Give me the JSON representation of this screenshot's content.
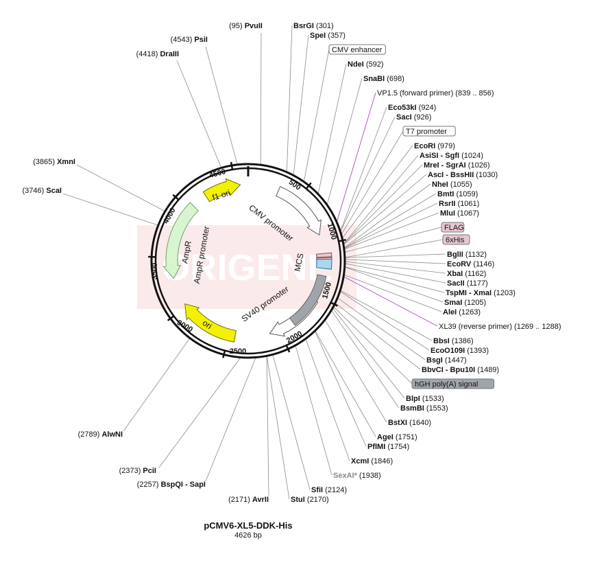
{
  "plasmid": {
    "name": "pCMV6-XL5-DDK-His",
    "size_label": "4626 bp"
  },
  "watermark": "ORIGENE",
  "colors": {
    "primer": "#a233b8",
    "ori": "#f2f200",
    "ampr": "#d8f5d0",
    "mcs": "#a9d6f0",
    "hgh": "#a0a4ab",
    "flag": "#e7c6d2",
    "backbone": "#111111",
    "leader": "#8a8a8a"
  },
  "ruler_ticks": [
    "500",
    "1000",
    "1500",
    "2000",
    "2500",
    "3000",
    "3500",
    "4000",
    "4500"
  ],
  "arc_features": [
    {
      "label": "CMV promoter"
    },
    {
      "label": "MCS"
    },
    {
      "label": "SV40 promoter"
    },
    {
      "label": "ori"
    },
    {
      "label": "AmpR"
    },
    {
      "label": "AmpR promoter"
    },
    {
      "label": "f1 ori"
    }
  ],
  "annotations_left": [
    {
      "site": "PvuII",
      "pos": "(95)"
    },
    {
      "site": "PsiI",
      "pos": "(4543)"
    },
    {
      "site": "DraIII",
      "pos": "(4418)"
    },
    {
      "site": "XmnI",
      "pos": "(3865)"
    },
    {
      "site": "ScaI",
      "pos": "(3746)"
    },
    {
      "site": "AlwNI",
      "pos": "(2789)"
    },
    {
      "site": "PciI",
      "pos": "(2373)"
    },
    {
      "site": "BspQI - SapI",
      "pos": "(2257)"
    },
    {
      "site": "AvrII",
      "pos": "(2171)"
    }
  ],
  "annotations_right": [
    {
      "site": "BsrGI",
      "pos": "(301)"
    },
    {
      "site": "SpeI",
      "pos": "(357)"
    },
    {
      "feature": "CMV enhancer"
    },
    {
      "site": "NdeI",
      "pos": "(592)"
    },
    {
      "site": "SnaBI",
      "pos": "(698)"
    },
    {
      "primer": "VP1.5 (forward primer)",
      "range": "(839 .. 856)"
    },
    {
      "site": "Eco53kI",
      "pos": "(924)"
    },
    {
      "site": "SacI",
      "pos": "(926)"
    },
    {
      "feature": "T7 promoter"
    },
    {
      "site": "EcoRI",
      "pos": "(979)"
    },
    {
      "site": "AsiSI - SgfI",
      "pos": "(1024)"
    },
    {
      "site": "MreI - SgrAI",
      "pos": "(1026)"
    },
    {
      "site": "AscI - BssHII",
      "pos": "(1030)"
    },
    {
      "site": "NheI",
      "pos": "(1055)"
    },
    {
      "site": "BmtI",
      "pos": "(1059)"
    },
    {
      "site": "RsrII",
      "pos": "(1061)"
    },
    {
      "site": "MluI",
      "pos": "(1067)"
    },
    {
      "tag": "FLAG"
    },
    {
      "tag": "6xHis"
    },
    {
      "site": "BglII",
      "pos": "(1132)"
    },
    {
      "site": "EcoRV",
      "pos": "(1146)"
    },
    {
      "site": "XbaI",
      "pos": "(1162)"
    },
    {
      "site": "SacII",
      "pos": "(1177)"
    },
    {
      "site": "TspMI - XmaI",
      "pos": "(1203)"
    },
    {
      "site": "SmaI",
      "pos": "(1205)"
    },
    {
      "site": "AleI",
      "pos": "(1263)"
    },
    {
      "primer": "XL39 (reverse primer)",
      "range": "(1269 .. 1288)"
    },
    {
      "site": "BbsI",
      "pos": "(1386)"
    },
    {
      "site": "EcoO109I",
      "pos": "(1393)"
    },
    {
      "site": "BsgI",
      "pos": "(1447)"
    },
    {
      "site": "BbvCI - Bpu10I",
      "pos": "(1489)"
    },
    {
      "feature": "hGH poly(A) signal"
    },
    {
      "site": "BlpI",
      "pos": "(1533)"
    },
    {
      "site": "BsmBI",
      "pos": "(1553)"
    },
    {
      "site": "BstXI",
      "pos": "(1640)"
    },
    {
      "site": "AgeI",
      "pos": "(1751)"
    },
    {
      "site": "PflMI",
      "pos": "(1754)"
    },
    {
      "site": "XcmI",
      "pos": "(1846)"
    },
    {
      "site": "SexAI*",
      "pos": "(1938)"
    },
    {
      "site": "SfiI",
      "pos": "(2124)"
    },
    {
      "site": "StuI",
      "pos": "(2170)"
    }
  ]
}
